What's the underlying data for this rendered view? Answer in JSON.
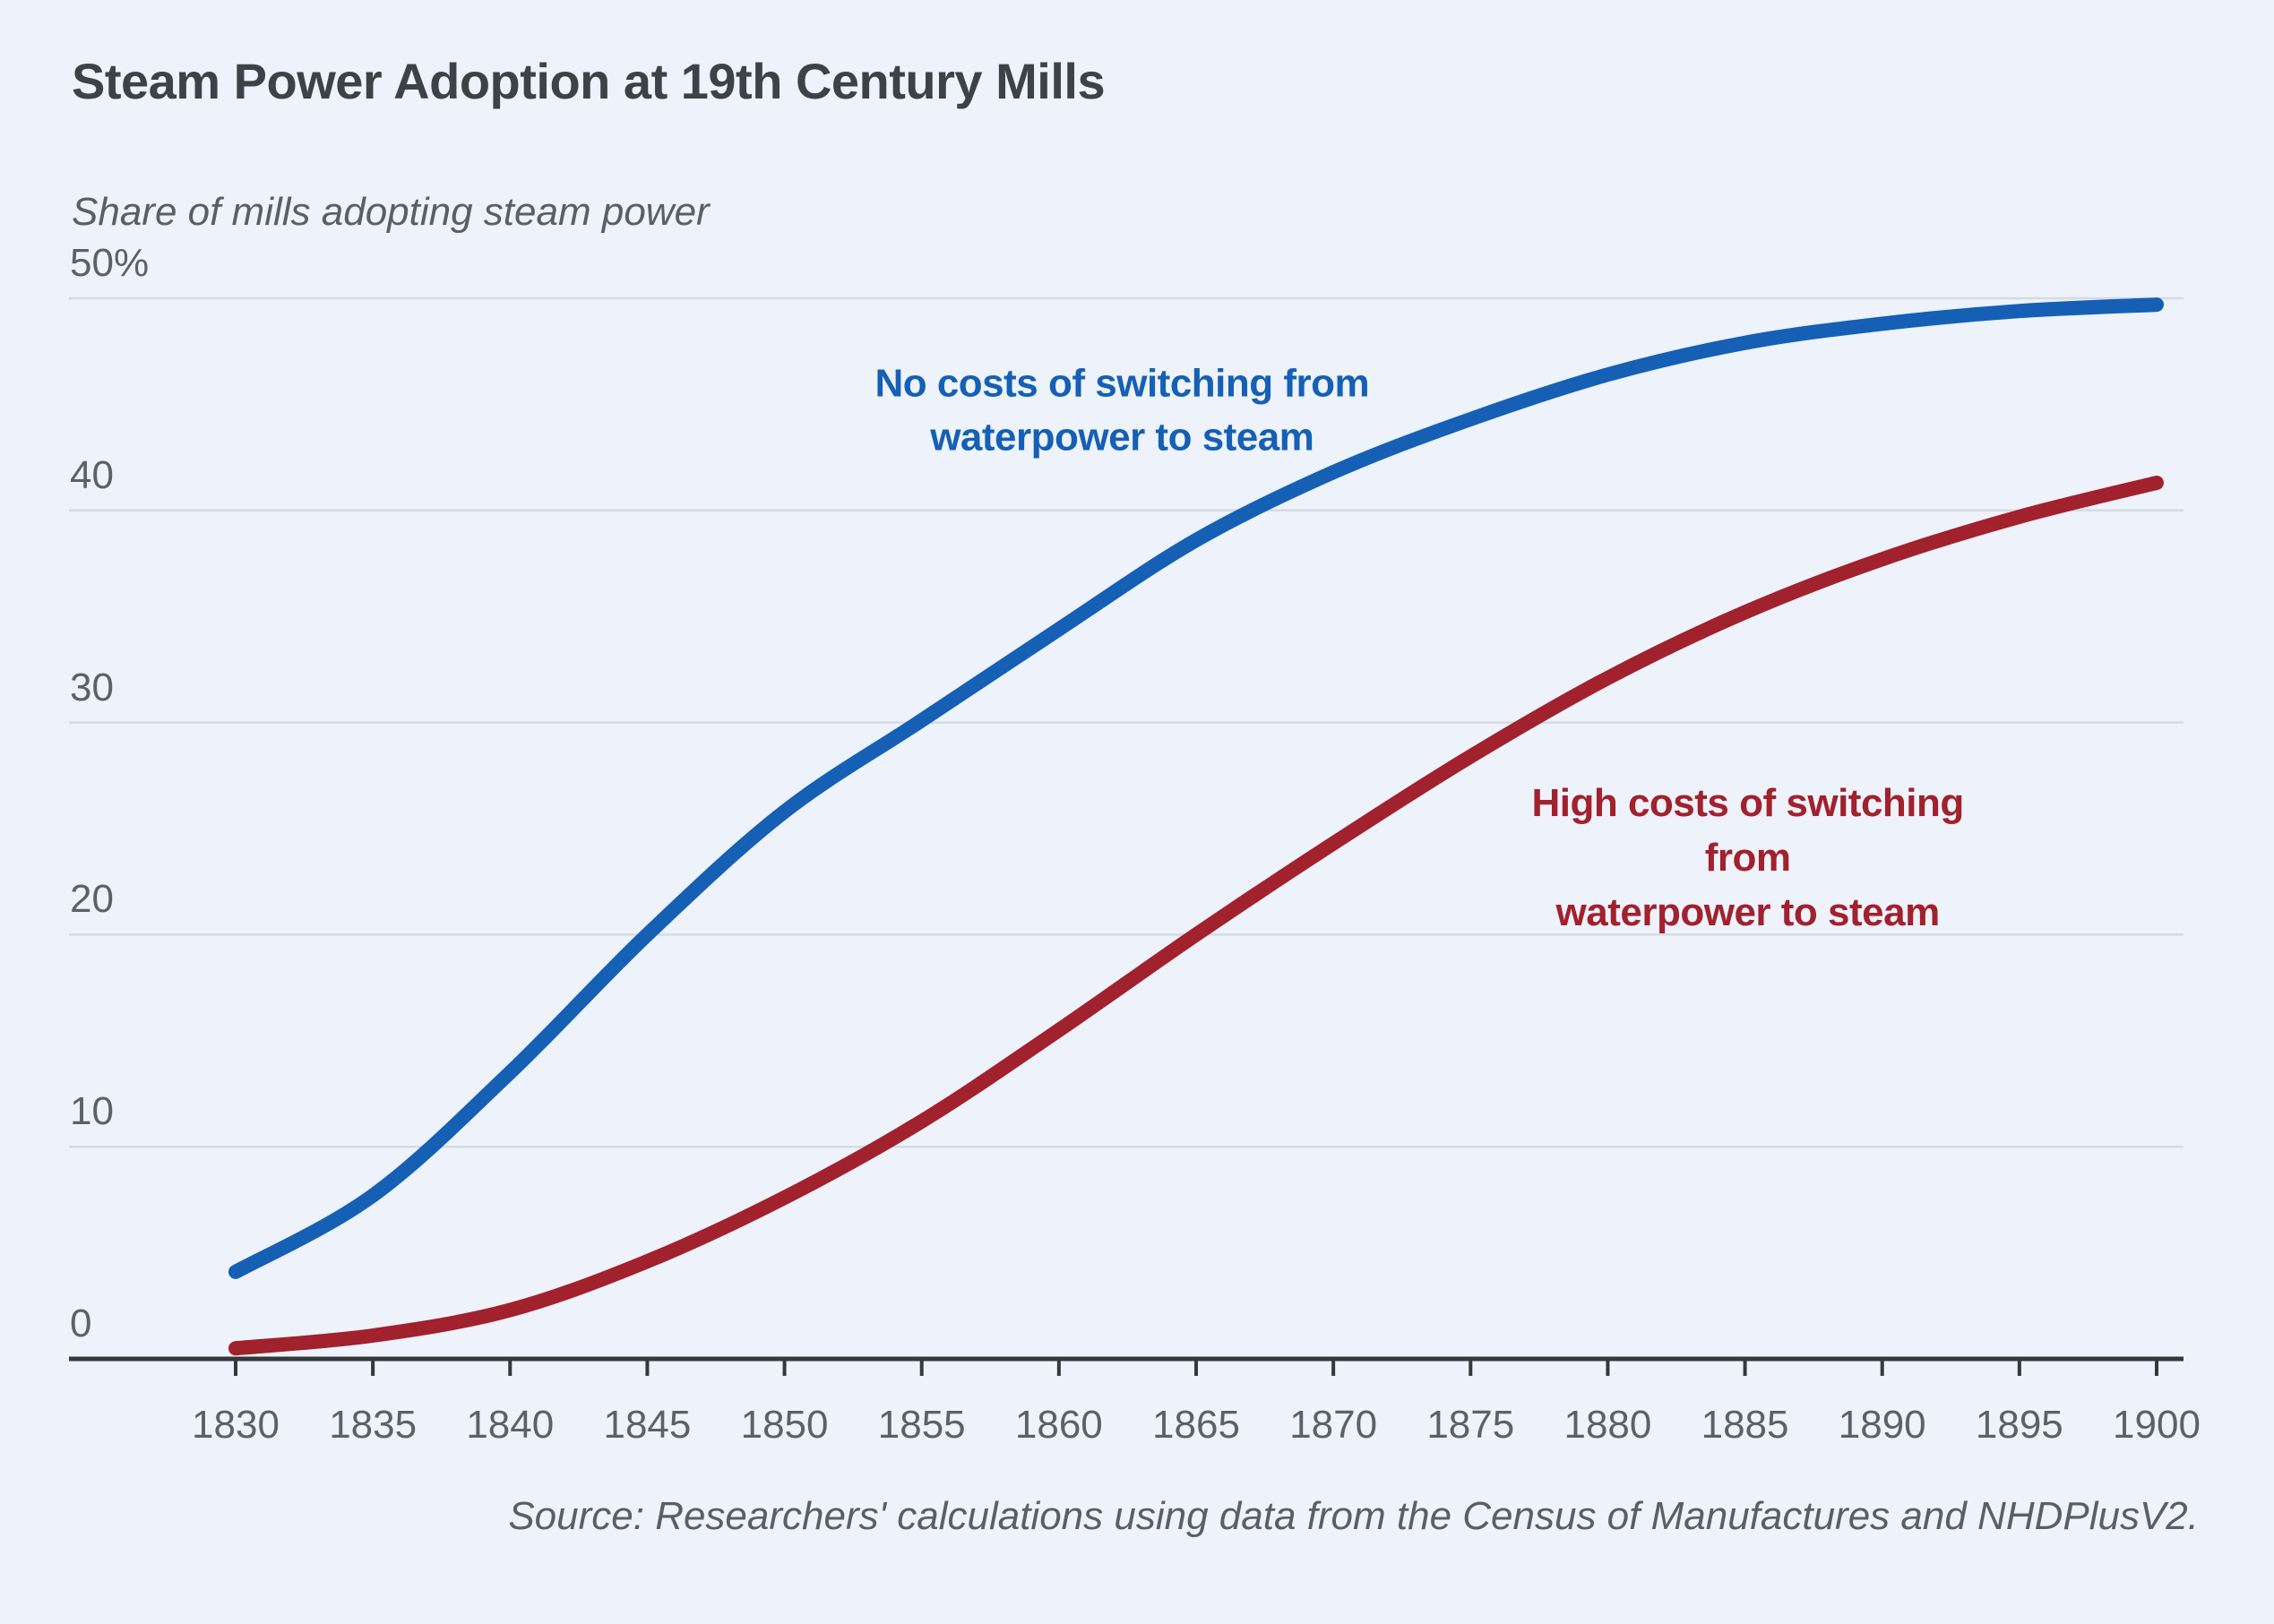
{
  "page": {
    "title": "Steam Power Adoption at 19th Century Mills",
    "subtitle": "Share of mills adopting steam power",
    "source": "Source: Researchers' calculations using data from the Census of Manufactures and NHDPlusV2."
  },
  "colors": {
    "background": "#edf2fb",
    "title_text": "#3e4247",
    "muted_text": "#5a5f66",
    "tick_label_text": "#5d6167",
    "axis_line": "#35393e",
    "gridline": "#d6dbe3",
    "no_cost_blue": "#1560b4",
    "high_cost_red": "#a1212d"
  },
  "chart_data": {
    "type": "line",
    "title": "Steam Power Adoption at 19th Century Mills",
    "ylabel": "Share of mills adopting steam power",
    "xlabel": "",
    "ylim": [
      0,
      50
    ],
    "xlim": [
      1830,
      1900
    ],
    "grid": true,
    "legend": "inline-labels",
    "x": [
      1830,
      1835,
      1840,
      1845,
      1850,
      1855,
      1860,
      1865,
      1870,
      1875,
      1880,
      1885,
      1890,
      1895,
      1900
    ],
    "xticks": [
      1830,
      1835,
      1840,
      1845,
      1850,
      1855,
      1860,
      1865,
      1870,
      1875,
      1880,
      1885,
      1890,
      1895,
      1900
    ],
    "yticks": [
      {
        "value": 0,
        "label": "0"
      },
      {
        "value": 10,
        "label": "10"
      },
      {
        "value": 20,
        "label": "20"
      },
      {
        "value": 30,
        "label": "30"
      },
      {
        "value": 40,
        "label": "40"
      },
      {
        "value": 50,
        "label": "50%"
      }
    ],
    "series": [
      {
        "name": "no-cost-of-switching",
        "label": "No costs of switching from\nwaterpower to steam",
        "color": "#1560b4",
        "values": [
          4.1,
          7.7,
          13.5,
          20.0,
          25.8,
          30.1,
          34.4,
          38.6,
          41.8,
          44.3,
          46.4,
          47.9,
          48.8,
          49.4,
          49.7
        ],
        "label_anchor": {
          "x": 1862.3,
          "y": 44.7
        }
      },
      {
        "name": "high-cost-of-switching",
        "label": "High costs of switching from\nwaterpower to steam",
        "color": "#a1212d",
        "values": [
          0.5,
          1.1,
          2.3,
          4.6,
          7.6,
          11.2,
          15.5,
          20.0,
          24.3,
          28.4,
          32.1,
          35.2,
          37.7,
          39.7,
          41.3
        ],
        "label_anchor": {
          "x": 1885.1,
          "y": 23.6
        }
      }
    ]
  }
}
